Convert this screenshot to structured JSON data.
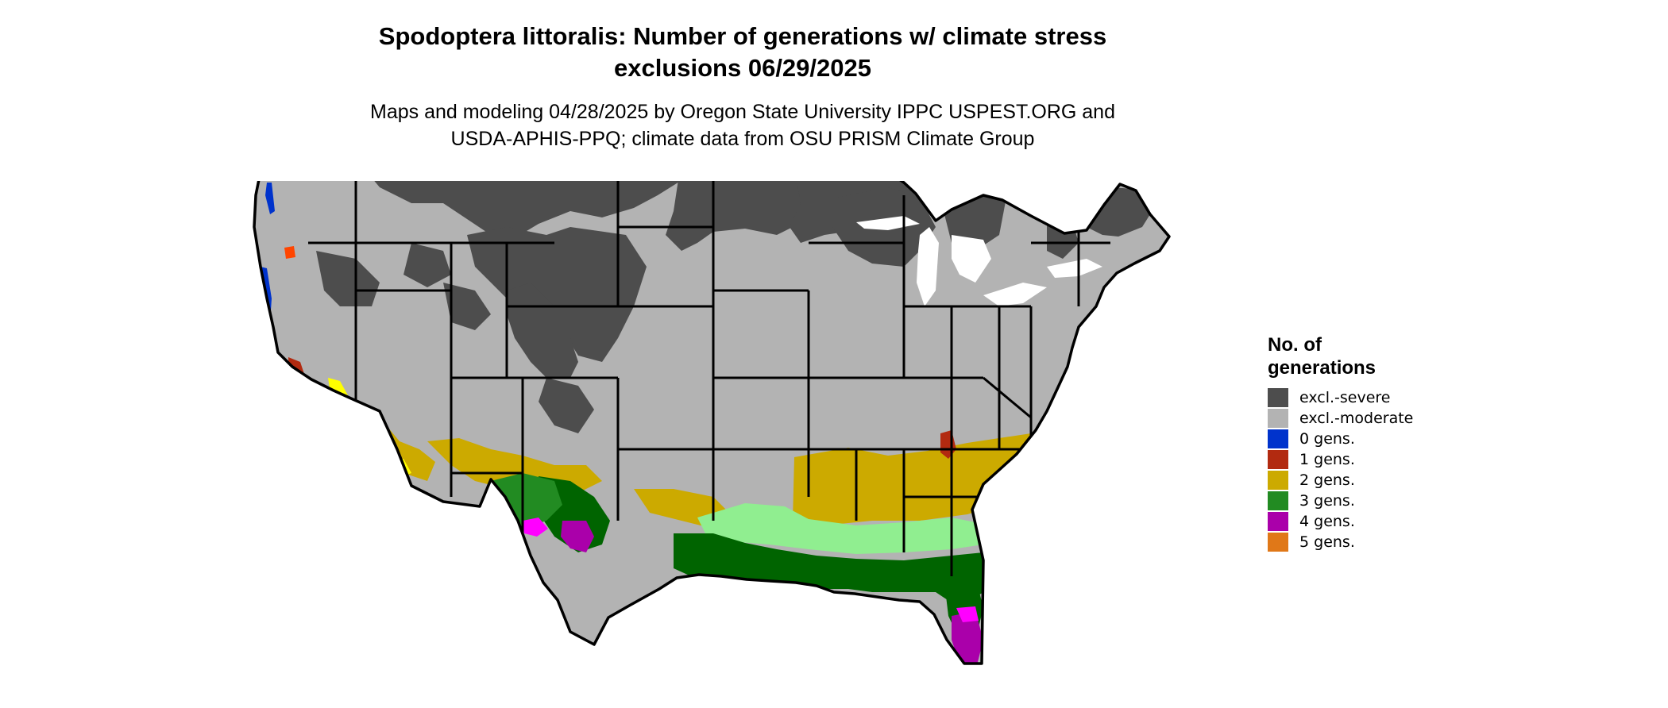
{
  "title": {
    "line1": "Spodoptera littoralis: Number of generations w/ climate stress",
    "line2": "exclusions 06/29/2025"
  },
  "subtitle": {
    "line1": "Maps and modeling 04/28/2025 by Oregon State University IPPC USPEST.ORG and",
    "line2": "USDA-APHIS-PPQ; climate data from OSU PRISM Climate Group"
  },
  "legend": {
    "title_line1": "No. of",
    "title_line2": "generations",
    "items": [
      {
        "label": "excl.-severe",
        "color": "#4d4d4d"
      },
      {
        "label": "excl.-moderate",
        "color": "#b3b3b3"
      },
      {
        "label": "0 gens.",
        "color": "#0033cc"
      },
      {
        "label": "1 gens.",
        "color": "#b22a10"
      },
      {
        "label": "2 gens.",
        "color": "#ccaa00"
      },
      {
        "label": "3 gens.",
        "color": "#228b22"
      },
      {
        "label": "4 gens.",
        "color": "#aa00aa"
      },
      {
        "label": "5 gens.",
        "color": "#e07818"
      }
    ]
  },
  "map_colors": {
    "border": "#000000",
    "ocean": "#ffffff",
    "gens3_dark": "#006400",
    "gens3_light": "#90ee90",
    "gens4_bright": "#ff00ff",
    "gens1_dark": "#8b1a1a",
    "gens2_bright": "#ffff00",
    "gens5_red": "#ff4500"
  }
}
